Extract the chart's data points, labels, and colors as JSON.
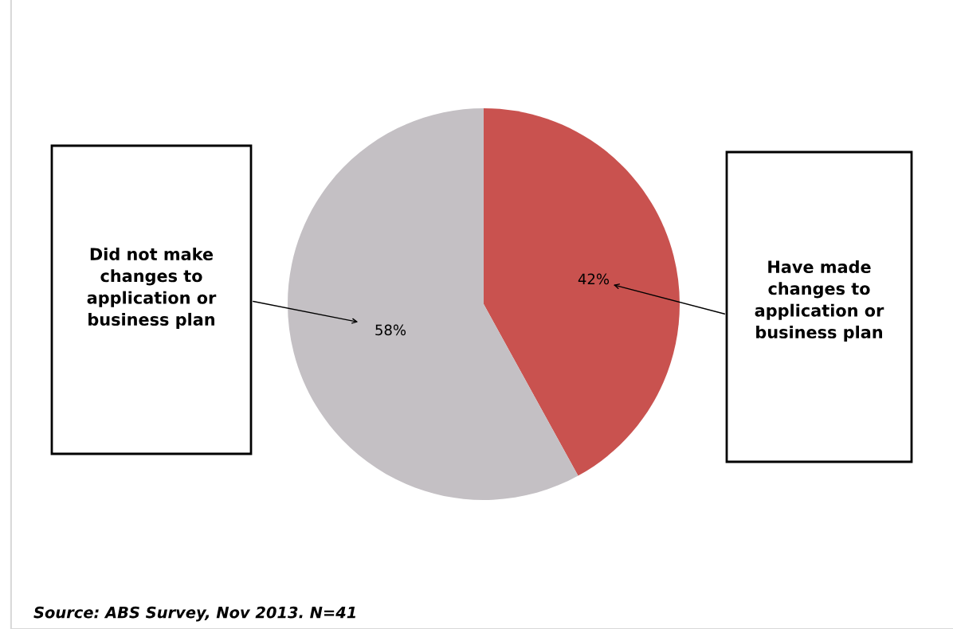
{
  "chart_data": {
    "type": "pie",
    "categories": [
      "Have made\nchanges to\napplication or\nbusiness plan",
      "Did not make\nchanges to\napplication or\nbusiness plan"
    ],
    "values": [
      42,
      58
    ],
    "colors": [
      "#c9524f",
      "#c4c0c4"
    ],
    "value_labels": [
      "42%",
      "58%"
    ],
    "legend": false,
    "annotations": [
      "Source: ABS Survey, Nov 2013. N=41"
    ]
  }
}
